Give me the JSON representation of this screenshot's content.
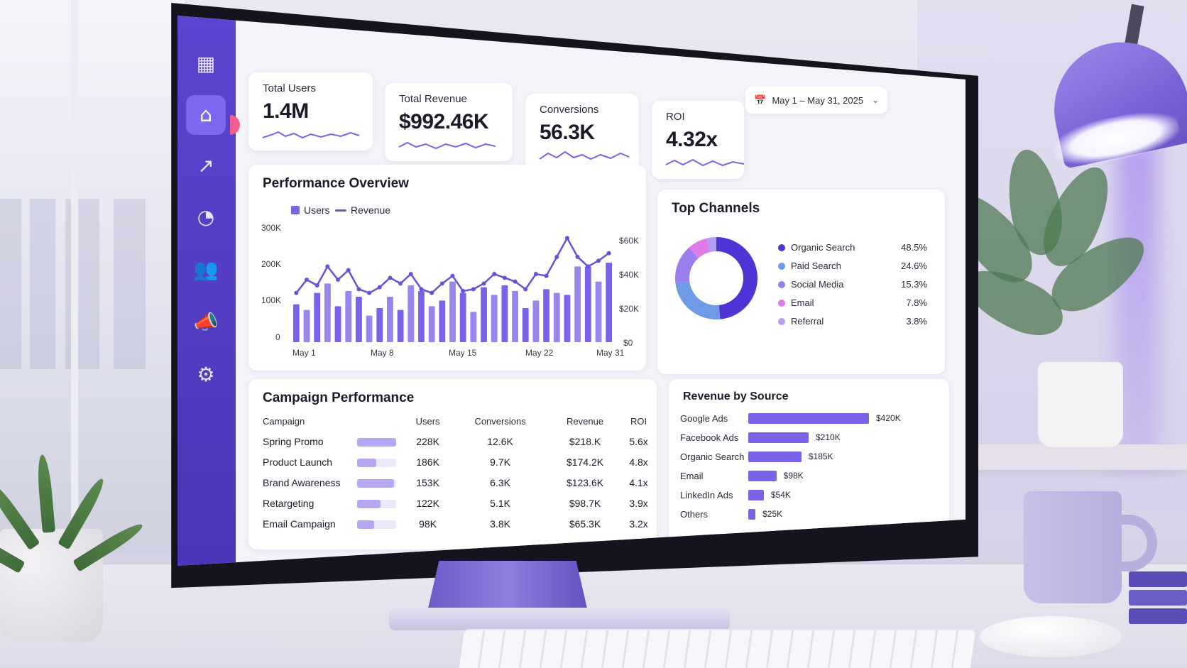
{
  "sidebar": {
    "icons": [
      "dashboard-icon",
      "home-icon",
      "trend-icon",
      "pie-chart-icon",
      "users-icon",
      "megaphone-icon",
      "settings-icon"
    ]
  },
  "kpis": [
    {
      "label": "Total Users",
      "value": "1.4M"
    },
    {
      "label": "Total Revenue",
      "value": "$992.46K"
    },
    {
      "label": "Conversions",
      "value": "56.3K"
    },
    {
      "label": "ROI",
      "value": "4.32x"
    }
  ],
  "date_range": {
    "label": "May 1 – May 31, 2025"
  },
  "performance": {
    "title": "Performance Overview",
    "legend_users": "Users",
    "legend_revenue": "Revenue",
    "y_left_ticks": [
      "300K",
      "200K",
      "100K",
      "0"
    ],
    "y_right_ticks": [
      "$60K",
      "$40K",
      "$20K",
      "$0"
    ],
    "x_ticks": [
      "May 1",
      "May 8",
      "May 15",
      "May 22",
      "May 31"
    ]
  },
  "chart_data": [
    {
      "type": "bar",
      "title": "Performance Overview",
      "categories": [
        "May 1",
        "May 2",
        "May 3",
        "May 4",
        "May 5",
        "May 6",
        "May 7",
        "May 8",
        "May 9",
        "May 10",
        "May 11",
        "May 12",
        "May 13",
        "May 14",
        "May 15",
        "May 16",
        "May 17",
        "May 18",
        "May 19",
        "May 20",
        "May 21",
        "May 22",
        "May 23",
        "May 24",
        "May 25",
        "May 26",
        "May 27",
        "May 28",
        "May 29",
        "May 30",
        "May 31"
      ],
      "series": [
        {
          "name": "Users",
          "type": "bar",
          "axis": "left",
          "values": [
            100000,
            85000,
            130000,
            155000,
            95000,
            135000,
            120000,
            70000,
            90000,
            120000,
            85000,
            150000,
            135000,
            95000,
            110000,
            160000,
            130000,
            80000,
            145000,
            125000,
            150000,
            135000,
            90000,
            110000,
            140000,
            130000,
            125000,
            200000,
            200000,
            160000,
            210000
          ]
        },
        {
          "name": "Revenue",
          "type": "line",
          "axis": "right",
          "values": [
            26000,
            33000,
            30000,
            40000,
            33000,
            38000,
            28000,
            26000,
            29000,
            34000,
            31000,
            36000,
            28000,
            26000,
            31000,
            35000,
            27000,
            28000,
            31000,
            36000,
            34000,
            32000,
            28000,
            36000,
            35000,
            45000,
            55000,
            45000,
            40000,
            43000,
            47000
          ]
        }
      ],
      "ylim_left": [
        0,
        300000
      ],
      "ylim_right": [
        0,
        60000
      ]
    },
    {
      "type": "pie",
      "title": "Top Channels",
      "categories": [
        "Organic Search",
        "Paid Search",
        "Social Media",
        "Email",
        "Referral"
      ],
      "values": [
        48.5,
        24.6,
        15.3,
        7.8,
        3.8
      ]
    },
    {
      "type": "bar",
      "title": "Revenue by Source",
      "categories": [
        "Google Ads",
        "Facebook Ads",
        "Organic Search",
        "Email",
        "LinkedIn Ads",
        "Others"
      ],
      "values": [
        420,
        210,
        185,
        98,
        54,
        25
      ]
    }
  ],
  "channels": {
    "title": "Top Channels",
    "items": [
      {
        "name": "Organic Search",
        "pct": "48.5%",
        "color": "#4f35d6"
      },
      {
        "name": "Paid Search",
        "pct": "24.6%",
        "color": "#6f9ae6"
      },
      {
        "name": "Social Media",
        "pct": "15.3%",
        "color": "#9b7ef0"
      },
      {
        "name": "Email",
        "pct": "7.8%",
        "color": "#e07be6"
      },
      {
        "name": "Referral",
        "pct": "3.8%",
        "color": "#b59cf3"
      }
    ]
  },
  "campaigns": {
    "title": "Campaign Performance",
    "headers": [
      "Campaign",
      "Users",
      "Conversions",
      "Revenue",
      "ROI"
    ],
    "rows": [
      {
        "name": "Spring Promo",
        "users": "228K",
        "conversions": "12.6K",
        "revenue": "$218.K",
        "roi": "5.6x",
        "share": 1.0
      },
      {
        "name": "Product Launch",
        "users": "186K",
        "conversions": "9.7K",
        "revenue": "$174.2K",
        "roi": "4.8x",
        "share": 0.5
      },
      {
        "name": "Brand Awareness",
        "users": "153K",
        "conversions": "6.3K",
        "revenue": "$123.6K",
        "roi": "4.1x",
        "share": 0.95
      },
      {
        "name": "Retargeting",
        "users": "122K",
        "conversions": "5.1K",
        "revenue": "$98.7K",
        "roi": "3.9x",
        "share": 0.6
      },
      {
        "name": "Email Campaign",
        "users": "98K",
        "conversions": "3.8K",
        "revenue": "$65.3K",
        "roi": "3.2x",
        "share": 0.45
      }
    ]
  },
  "revenue_source": {
    "title": "Revenue by Source",
    "items": [
      {
        "name": "Google Ads",
        "value": "$420K",
        "amount": 420
      },
      {
        "name": "Facebook Ads",
        "value": "$210K",
        "amount": 210
      },
      {
        "name": "Organic Search",
        "value": "$185K",
        "amount": 185
      },
      {
        "name": "Email",
        "value": "$98K",
        "amount": 98
      },
      {
        "name": "LinkedIn Ads",
        "value": "$54K",
        "amount": 54
      },
      {
        "name": "Others",
        "value": "$25K",
        "amount": 25
      }
    ]
  },
  "colors": {
    "accent": "#5b45d0",
    "bar": "#7b62e8",
    "line": "#6a50d6"
  }
}
